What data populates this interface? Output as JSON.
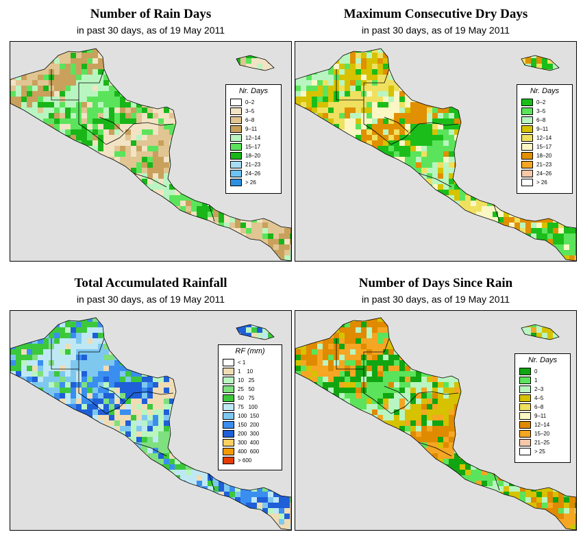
{
  "panels": [
    {
      "title": "Number of Rain Days",
      "subtitle": "in past 30 days, as of  19 May 2011",
      "legend_title": "Nr. Days",
      "legend": [
        {
          "label": "0–2",
          "color": "#ffffff"
        },
        {
          "label": "3–5",
          "color": "#f2e3c4"
        },
        {
          "label": "6–8",
          "color": "#e1c592"
        },
        {
          "label": "9–11",
          "color": "#c9a15c"
        },
        {
          "label": "12–14",
          "color": "#b9f5c0"
        },
        {
          "label": "15–17",
          "color": "#5be45b"
        },
        {
          "label": "18–20",
          "color": "#19b519"
        },
        {
          "label": "21–23",
          "color": "#a8dcf5"
        },
        {
          "label": "24–26",
          "color": "#6fc3f2"
        },
        {
          "label": "> 26",
          "color": "#2c8fe0"
        }
      ],
      "pattern": [
        1,
        2,
        3,
        4,
        5,
        6
      ]
    },
    {
      "title": "Maximum Consecutive Dry Days",
      "subtitle": "in past 30 days, as of  19 May 2011",
      "legend_title": "Nr. Days",
      "legend": [
        {
          "label": "0–2",
          "color": "#1bbd1b"
        },
        {
          "label": "3–5",
          "color": "#5be45b"
        },
        {
          "label": "6–8",
          "color": "#b9f5c0"
        },
        {
          "label": "9–11",
          "color": "#d6c200"
        },
        {
          "label": "12–14",
          "color": "#f0e060"
        },
        {
          "label": "15–17",
          "color": "#fbf7c4"
        },
        {
          "label": "18–20",
          "color": "#e09000"
        },
        {
          "label": "21–23",
          "color": "#f5a623"
        },
        {
          "label": "24–26",
          "color": "#f5c8a8"
        },
        {
          "label": "> 26",
          "color": "#ffffff"
        }
      ],
      "pattern": [
        0,
        1,
        2,
        3,
        4,
        5,
        6
      ]
    },
    {
      "title": "Total Accumulated Rainfall",
      "subtitle": "in past 30 days, as of  19 May 2011",
      "legend_title": "RF (mm)",
      "legend": [
        {
          "label": "< 1",
          "color": "#ffffff"
        },
        {
          "label": "1    10",
          "color": "#f0dcb4"
        },
        {
          "label": "10   25",
          "color": "#b9f5c0"
        },
        {
          "label": "25   50",
          "color": "#7ee07e"
        },
        {
          "label": "50   75",
          "color": "#3cc83c"
        },
        {
          "label": "75   100",
          "color": "#bfe8f5"
        },
        {
          "label": "100  150",
          "color": "#7ec8f0"
        },
        {
          "label": "150  200",
          "color": "#3a8ef0"
        },
        {
          "label": "200  300",
          "color": "#1f5fd8"
        },
        {
          "label": "300  400",
          "color": "#ffd060"
        },
        {
          "label": "400  600",
          "color": "#f59a00"
        },
        {
          "label": "> 600",
          "color": "#e63c00"
        }
      ],
      "pattern": [
        1,
        2,
        3,
        4,
        5,
        6,
        7,
        8
      ]
    },
    {
      "title": "Number of Days Since Rain",
      "subtitle": "in past 30 days, as of  19 May 2011",
      "legend_title": "Nr. Days",
      "legend": [
        {
          "label": "0",
          "color": "#12a512"
        },
        {
          "label": "1",
          "color": "#5be45b"
        },
        {
          "label": "2–3",
          "color": "#b9f5c0"
        },
        {
          "label": "4–5",
          "color": "#d6c200"
        },
        {
          "label": "6–8",
          "color": "#f0e060"
        },
        {
          "label": "9–11",
          "color": "#fbf7c4"
        },
        {
          "label": "12–14",
          "color": "#e08a00"
        },
        {
          "label": "15–20",
          "color": "#f5a623"
        },
        {
          "label": "21–25",
          "color": "#f5c8a8"
        },
        {
          "label": "> 25",
          "color": "#ffffff"
        }
      ],
      "pattern": [
        0,
        1,
        2,
        3,
        6,
        7
      ]
    }
  ]
}
